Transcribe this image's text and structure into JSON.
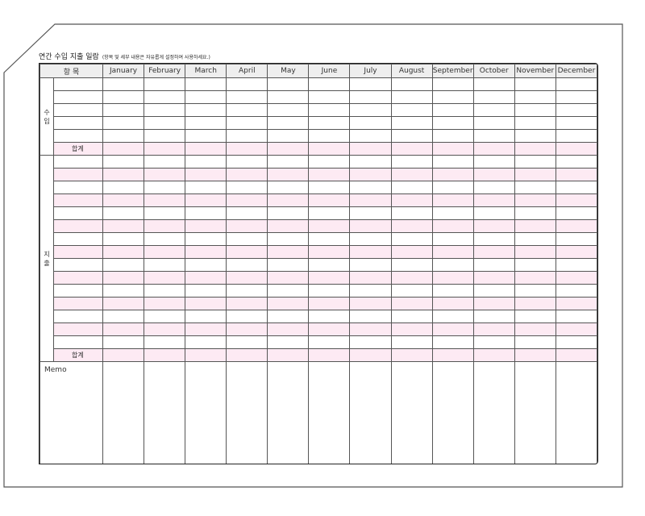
{
  "title": "연간 수입 지출 일람",
  "subtitle": "(항목 및 세부 내용은 자유롭게 설정하여 사용하세요.)",
  "header": {
    "item": "항 목",
    "months": [
      "January",
      "February",
      "March",
      "April",
      "May",
      "June",
      "July",
      "August",
      "September",
      "October",
      "November",
      "December"
    ]
  },
  "income": {
    "label": "수\n입",
    "total": "합계"
  },
  "expense": {
    "label": "지\n출",
    "total": "합계"
  },
  "memo": "Memo",
  "colors": {
    "pink_row": "#fdeaf3",
    "header_bg": "#eeeeee",
    "border": "#555555"
  }
}
